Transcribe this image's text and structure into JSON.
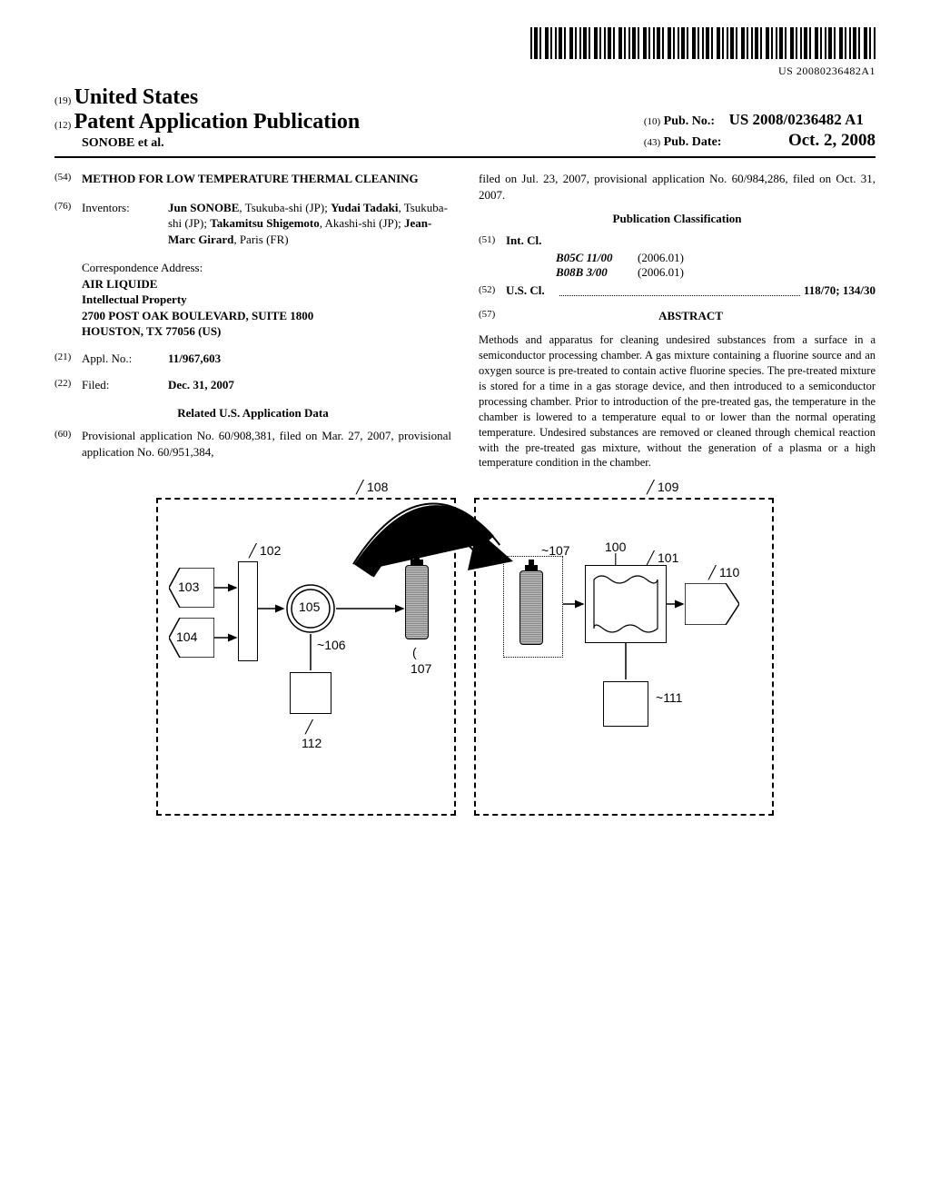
{
  "barcode_text": "US 20080236482A1",
  "header": {
    "code19": "(19)",
    "country": "United States",
    "code12": "(12)",
    "pub_type": "Patent Application Publication",
    "authors": "SONOBE et al.",
    "code10": "(10)",
    "pubno_label": "Pub. No.:",
    "pubno": "US 2008/0236482 A1",
    "code43": "(43)",
    "pubdate_label": "Pub. Date:",
    "pubdate": "Oct. 2, 2008"
  },
  "title": {
    "code": "(54)",
    "value": "METHOD FOR LOW TEMPERATURE THERMAL CLEANING"
  },
  "inventors": {
    "code": "(76)",
    "label": "Inventors:",
    "text_parts": [
      {
        "bold": true,
        "t": "Jun SONOBE"
      },
      {
        "bold": false,
        "t": ", Tsukuba-shi (JP); "
      },
      {
        "bold": true,
        "t": "Yudai Tadaki"
      },
      {
        "bold": false,
        "t": ", Tsukuba-shi (JP); "
      },
      {
        "bold": true,
        "t": "Takamitsu Shigemoto"
      },
      {
        "bold": false,
        "t": ", Akashi-shi (JP); "
      },
      {
        "bold": true,
        "t": "Jean-Marc Girard"
      },
      {
        "bold": false,
        "t": ", Paris (FR)"
      }
    ]
  },
  "correspondence": {
    "heading": "Correspondence Address:",
    "lines": [
      "AIR LIQUIDE",
      "Intellectual Property",
      "2700 POST OAK BOULEVARD, SUITE 1800",
      "HOUSTON, TX 77056 (US)"
    ]
  },
  "appl": {
    "code": "(21)",
    "label": "Appl. No.:",
    "value": "11/967,603"
  },
  "filed": {
    "code": "(22)",
    "label": "Filed:",
    "value": "Dec. 31, 2007"
  },
  "related": {
    "header": "Related U.S. Application Data",
    "code": "(60)",
    "text_left": "Provisional application No. 60/908,381, filed on Mar. 27, 2007, provisional application No. 60/951,384,",
    "text_right": "filed on Jul. 23, 2007, provisional application No. 60/984,286, filed on Oct. 31, 2007."
  },
  "classification": {
    "header": "Publication Classification",
    "intcl": {
      "code": "(51)",
      "label": "Int. Cl.",
      "entries": [
        {
          "name": "B05C 11/00",
          "year": "(2006.01)"
        },
        {
          "name": "B08B 3/00",
          "year": "(2006.01)"
        }
      ]
    },
    "uscl": {
      "code": "(52)",
      "label": "U.S. Cl.",
      "value": "118/70; 134/30"
    }
  },
  "abstract": {
    "code": "(57)",
    "label": "ABSTRACT",
    "text": "Methods and apparatus for cleaning undesired substances from a surface in a semiconductor processing chamber. A gas mixture containing a fluorine source and an oxygen source is pre-treated to contain active fluorine species. The pre-treated mixture is stored for a time in a gas storage device, and then introduced to a semiconductor processing chamber. Prior to introduction of the pre-treated gas, the temperature in the chamber is lowered to a temperature equal to or lower than the normal operating temperature. Undesired substances are removed or cleaned through chemical reaction with the pre-treated gas mixture, without the generation of a plasma or a high temperature condition in the chamber."
  },
  "figure": {
    "labels": {
      "l108": "108",
      "l102": "102",
      "l103": "103",
      "l104": "104",
      "l105": "105",
      "l106": "106",
      "l107a": "107",
      "l112": "112",
      "l109": "109",
      "l107b": "107",
      "l100": "100",
      "l101": "101",
      "l110": "110",
      "l111": "111"
    }
  },
  "colors": {
    "text": "#000000",
    "background": "#ffffff",
    "shaded_fill": "#999999"
  }
}
